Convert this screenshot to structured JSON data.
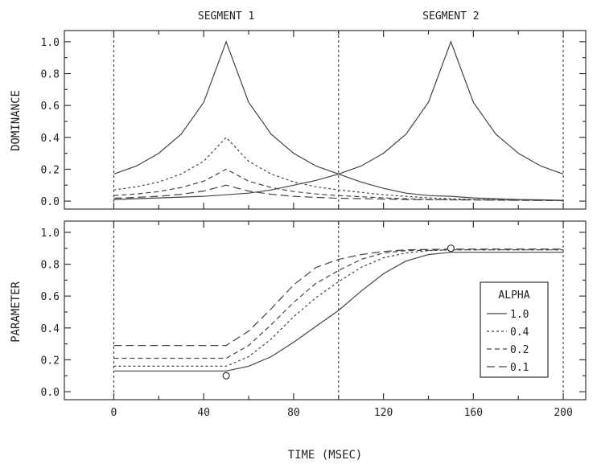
{
  "chart_data": [
    {
      "type": "line",
      "panel": "dominance",
      "ylabel": "DOMINANCE",
      "xlim": [
        -22,
        210
      ],
      "ylim": [
        -0.05,
        1.07
      ],
      "yticks": [
        "0.0",
        "0.2",
        "0.4",
        "0.6",
        "0.8",
        "1.0"
      ],
      "segment_labels": [
        "SEGMENT 1",
        "SEGMENT 2"
      ],
      "segment_centers": [
        50,
        150
      ],
      "segment_boundaries": [
        0,
        100,
        200
      ],
      "grid": false,
      "series": [
        {
          "name": "1.0",
          "dash": "",
          "values": [
            {
              "x": 0,
              "y": 0.17
            },
            {
              "x": 10,
              "y": 0.22
            },
            {
              "x": 20,
              "y": 0.3
            },
            {
              "x": 30,
              "y": 0.42
            },
            {
              "x": 40,
              "y": 0.62
            },
            {
              "x": 50,
              "y": 1.0
            },
            {
              "x": 60,
              "y": 0.62
            },
            {
              "x": 70,
              "y": 0.42
            },
            {
              "x": 80,
              "y": 0.3
            },
            {
              "x": 90,
              "y": 0.22
            },
            {
              "x": 100,
              "y": 0.17
            },
            {
              "x": 110,
              "y": 0.12
            },
            {
              "x": 120,
              "y": 0.08
            },
            {
              "x": 130,
              "y": 0.05
            },
            {
              "x": 140,
              "y": 0.035
            },
            {
              "x": 150,
              "y": 0.03
            },
            {
              "x": 160,
              "y": 0.02
            },
            {
              "x": 170,
              "y": 0.015
            },
            {
              "x": 180,
              "y": 0.01
            },
            {
              "x": 190,
              "y": 0.008
            },
            {
              "x": 200,
              "y": 0.005
            }
          ]
        },
        {
          "name": "1.0 (segment 2)",
          "dash": "",
          "values": [
            {
              "x": 0,
              "y": 0.01
            },
            {
              "x": 20,
              "y": 0.02
            },
            {
              "x": 40,
              "y": 0.03
            },
            {
              "x": 60,
              "y": 0.05
            },
            {
              "x": 70,
              "y": 0.07
            },
            {
              "x": 80,
              "y": 0.1
            },
            {
              "x": 90,
              "y": 0.13
            },
            {
              "x": 100,
              "y": 0.17
            },
            {
              "x": 110,
              "y": 0.22
            },
            {
              "x": 120,
              "y": 0.3
            },
            {
              "x": 130,
              "y": 0.42
            },
            {
              "x": 140,
              "y": 0.62
            },
            {
              "x": 150,
              "y": 1.0
            },
            {
              "x": 160,
              "y": 0.62
            },
            {
              "x": 170,
              "y": 0.42
            },
            {
              "x": 180,
              "y": 0.3
            },
            {
              "x": 190,
              "y": 0.22
            },
            {
              "x": 200,
              "y": 0.17
            }
          ]
        },
        {
          "name": "0.4",
          "dash": "3 3",
          "values": [
            {
              "x": 0,
              "y": 0.07
            },
            {
              "x": 10,
              "y": 0.09
            },
            {
              "x": 20,
              "y": 0.12
            },
            {
              "x": 30,
              "y": 0.17
            },
            {
              "x": 40,
              "y": 0.25
            },
            {
              "x": 50,
              "y": 0.4
            },
            {
              "x": 60,
              "y": 0.25
            },
            {
              "x": 70,
              "y": 0.17
            },
            {
              "x": 80,
              "y": 0.12
            },
            {
              "x": 90,
              "y": 0.09
            },
            {
              "x": 100,
              "y": 0.07
            },
            {
              "x": 120,
              "y": 0.04
            },
            {
              "x": 140,
              "y": 0.02
            },
            {
              "x": 160,
              "y": 0.01
            },
            {
              "x": 200,
              "y": 0.005
            }
          ]
        },
        {
          "name": "0.2",
          "dash": "6 4",
          "values": [
            {
              "x": 0,
              "y": 0.035
            },
            {
              "x": 10,
              "y": 0.045
            },
            {
              "x": 20,
              "y": 0.06
            },
            {
              "x": 30,
              "y": 0.085
            },
            {
              "x": 40,
              "y": 0.125
            },
            {
              "x": 50,
              "y": 0.2
            },
            {
              "x": 60,
              "y": 0.125
            },
            {
              "x": 70,
              "y": 0.085
            },
            {
              "x": 80,
              "y": 0.06
            },
            {
              "x": 90,
              "y": 0.045
            },
            {
              "x": 100,
              "y": 0.035
            },
            {
              "x": 120,
              "y": 0.02
            },
            {
              "x": 140,
              "y": 0.01
            },
            {
              "x": 200,
              "y": 0.004
            }
          ]
        },
        {
          "name": "0.1",
          "dash": "10 5",
          "values": [
            {
              "x": 0,
              "y": 0.018
            },
            {
              "x": 10,
              "y": 0.023
            },
            {
              "x": 20,
              "y": 0.03
            },
            {
              "x": 30,
              "y": 0.043
            },
            {
              "x": 40,
              "y": 0.063
            },
            {
              "x": 50,
              "y": 0.1
            },
            {
              "x": 60,
              "y": 0.063
            },
            {
              "x": 70,
              "y": 0.043
            },
            {
              "x": 80,
              "y": 0.03
            },
            {
              "x": 90,
              "y": 0.023
            },
            {
              "x": 100,
              "y": 0.018
            },
            {
              "x": 130,
              "y": 0.01
            },
            {
              "x": 200,
              "y": 0.003
            }
          ]
        }
      ]
    },
    {
      "type": "line",
      "panel": "parameter",
      "ylabel": "PARAMETER",
      "xlabel": "TIME (MSEC)",
      "xlim": [
        -22,
        210
      ],
      "ylim": [
        -0.05,
        1.07
      ],
      "xticks": [
        "0",
        "40",
        "80",
        "120",
        "160",
        "200"
      ],
      "xtick_values": [
        0,
        40,
        80,
        120,
        160,
        200
      ],
      "xminor_values": [
        20,
        60,
        100,
        140,
        180
      ],
      "yticks": [
        "0.0",
        "0.2",
        "0.4",
        "0.6",
        "0.8",
        "1.0"
      ],
      "segment_boundaries": [
        0,
        100,
        200
      ],
      "grid": false,
      "legend": {
        "title": "ALPHA",
        "entries": [
          "1.0",
          "0.4",
          "0.2",
          "0.1"
        ],
        "position": "right"
      },
      "targets": [
        {
          "x": 50,
          "y": 0.1
        },
        {
          "x": 150,
          "y": 0.9
        }
      ],
      "series": [
        {
          "name": "1.0",
          "dash": "",
          "values": [
            {
              "x": 0,
              "y": 0.13
            },
            {
              "x": 50,
              "y": 0.13
            },
            {
              "x": 60,
              "y": 0.16
            },
            {
              "x": 70,
              "y": 0.22
            },
            {
              "x": 80,
              "y": 0.31
            },
            {
              "x": 90,
              "y": 0.41
            },
            {
              "x": 100,
              "y": 0.51
            },
            {
              "x": 110,
              "y": 0.63
            },
            {
              "x": 120,
              "y": 0.74
            },
            {
              "x": 130,
              "y": 0.82
            },
            {
              "x": 140,
              "y": 0.86
            },
            {
              "x": 150,
              "y": 0.875
            },
            {
              "x": 200,
              "y": 0.875
            }
          ]
        },
        {
          "name": "0.4",
          "dash": "3 3",
          "values": [
            {
              "x": 0,
              "y": 0.16
            },
            {
              "x": 50,
              "y": 0.16
            },
            {
              "x": 60,
              "y": 0.22
            },
            {
              "x": 70,
              "y": 0.33
            },
            {
              "x": 80,
              "y": 0.47
            },
            {
              "x": 90,
              "y": 0.59
            },
            {
              "x": 100,
              "y": 0.69
            },
            {
              "x": 110,
              "y": 0.78
            },
            {
              "x": 120,
              "y": 0.84
            },
            {
              "x": 130,
              "y": 0.87
            },
            {
              "x": 140,
              "y": 0.885
            },
            {
              "x": 150,
              "y": 0.89
            },
            {
              "x": 200,
              "y": 0.89
            }
          ]
        },
        {
          "name": "0.2",
          "dash": "6 4",
          "values": [
            {
              "x": 0,
              "y": 0.21
            },
            {
              "x": 50,
              "y": 0.21
            },
            {
              "x": 60,
              "y": 0.29
            },
            {
              "x": 70,
              "y": 0.42
            },
            {
              "x": 80,
              "y": 0.56
            },
            {
              "x": 90,
              "y": 0.68
            },
            {
              "x": 100,
              "y": 0.76
            },
            {
              "x": 110,
              "y": 0.83
            },
            {
              "x": 120,
              "y": 0.87
            },
            {
              "x": 130,
              "y": 0.885
            },
            {
              "x": 150,
              "y": 0.89
            },
            {
              "x": 200,
              "y": 0.89
            }
          ]
        },
        {
          "name": "0.1",
          "dash": "10 5",
          "values": [
            {
              "x": 0,
              "y": 0.29
            },
            {
              "x": 50,
              "y": 0.29
            },
            {
              "x": 60,
              "y": 0.38
            },
            {
              "x": 70,
              "y": 0.52
            },
            {
              "x": 80,
              "y": 0.67
            },
            {
              "x": 90,
              "y": 0.78
            },
            {
              "x": 100,
              "y": 0.83
            },
            {
              "x": 110,
              "y": 0.86
            },
            {
              "x": 120,
              "y": 0.88
            },
            {
              "x": 130,
              "y": 0.89
            },
            {
              "x": 150,
              "y": 0.895
            },
            {
              "x": 200,
              "y": 0.895
            }
          ]
        }
      ]
    }
  ]
}
